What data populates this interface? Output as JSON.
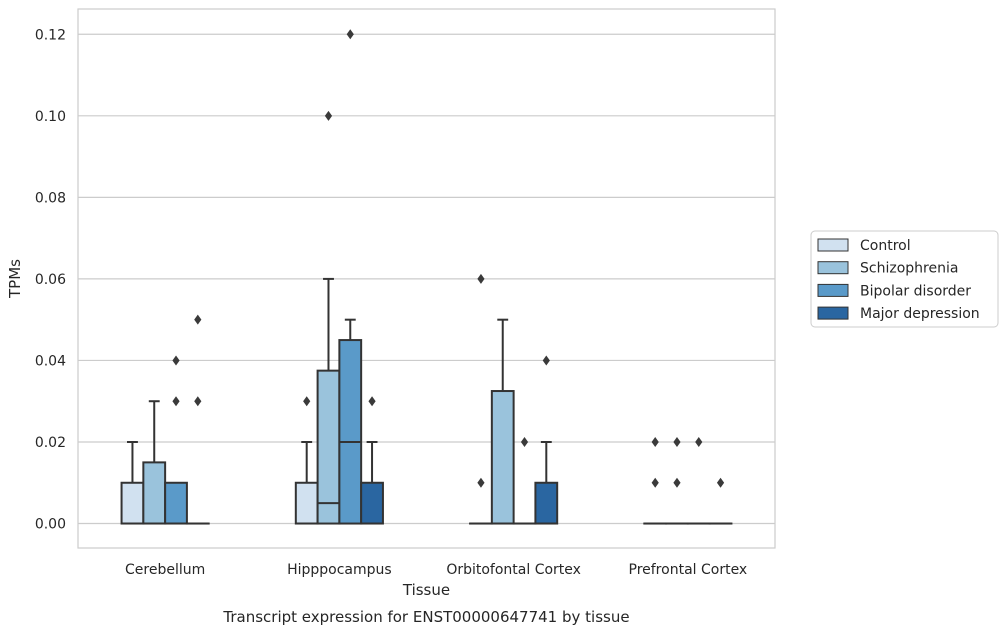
{
  "chart_data": {
    "type": "box",
    "title": "Transcript expression for ENST00000647741 by tissue",
    "xlabel": "Tissue",
    "ylabel": "TPMs",
    "ylim": [
      -0.006,
      0.1262
    ],
    "yticks": [
      "0.00",
      "0.02",
      "0.04",
      "0.06",
      "0.08",
      "0.10",
      "0.12"
    ],
    "ytick_values": [
      0,
      0.02,
      0.04,
      0.06,
      0.08,
      0.1,
      0.12
    ],
    "grid": true,
    "legend_position": "right",
    "categories": [
      "Cerebellum",
      "Hipppocampus",
      "Orbitofontal Cortex",
      "Prefrontal Cortex"
    ],
    "series": [
      {
        "name": "Control",
        "color": "#d1e1f0",
        "boxes": [
          {
            "q1": 0,
            "median": 0,
            "q3": 0.01,
            "whisker_low": 0,
            "whisker_high": 0.02,
            "outliers": []
          },
          {
            "q1": 0,
            "median": 0,
            "q3": 0.01,
            "whisker_low": 0,
            "whisker_high": 0.02,
            "outliers": [
              0.03
            ]
          },
          {
            "q1": 0,
            "median": 0,
            "q3": 0,
            "whisker_low": 0,
            "whisker_high": 0,
            "outliers": [
              0.01,
              0.06
            ]
          },
          {
            "q1": 0,
            "median": 0,
            "q3": 0,
            "whisker_low": 0,
            "whisker_high": 0,
            "outliers": [
              0.01,
              0.02
            ]
          }
        ]
      },
      {
        "name": "Schizophrenia",
        "color": "#9ac3dc",
        "boxes": [
          {
            "q1": 0,
            "median": 0,
            "q3": 0.015,
            "whisker_low": 0,
            "whisker_high": 0.03,
            "outliers": []
          },
          {
            "q1": 0,
            "median": 0.005,
            "q3": 0.0375,
            "whisker_low": 0,
            "whisker_high": 0.06,
            "outliers": [
              0.1
            ]
          },
          {
            "q1": 0,
            "median": 0,
            "q3": 0.0325,
            "whisker_low": 0,
            "whisker_high": 0.05,
            "outliers": []
          },
          {
            "q1": 0,
            "median": 0,
            "q3": 0,
            "whisker_low": 0,
            "whisker_high": 0,
            "outliers": [
              0.01,
              0.02
            ]
          }
        ]
      },
      {
        "name": "Bipolar disorder",
        "color": "#5a9ac9",
        "boxes": [
          {
            "q1": 0,
            "median": 0,
            "q3": 0.01,
            "whisker_low": 0,
            "whisker_high": 0.01,
            "outliers": [
              0.03,
              0.04
            ]
          },
          {
            "q1": 0,
            "median": 0.02,
            "q3": 0.045,
            "whisker_low": 0,
            "whisker_high": 0.05,
            "outliers": [
              0.12
            ]
          },
          {
            "q1": 0,
            "median": 0,
            "q3": 0,
            "whisker_low": 0,
            "whisker_high": 0,
            "outliers": [
              0.02
            ]
          },
          {
            "q1": 0,
            "median": 0,
            "q3": 0,
            "whisker_low": 0,
            "whisker_high": 0,
            "outliers": [
              0.02
            ]
          }
        ]
      },
      {
        "name": "Major depression",
        "color": "#2a66a1",
        "boxes": [
          {
            "q1": 0,
            "median": 0,
            "q3": 0,
            "whisker_low": 0,
            "whisker_high": 0,
            "outliers": [
              0.03,
              0.05
            ]
          },
          {
            "q1": 0,
            "median": 0,
            "q3": 0.01,
            "whisker_low": 0,
            "whisker_high": 0.02,
            "outliers": [
              0.03
            ]
          },
          {
            "q1": 0,
            "median": 0,
            "q3": 0.01,
            "whisker_low": 0,
            "whisker_high": 0.02,
            "outliers": [
              0.04
            ]
          },
          {
            "q1": 0,
            "median": 0,
            "q3": 0,
            "whisker_low": 0,
            "whisker_high": 0,
            "outliers": [
              0.01
            ]
          }
        ]
      }
    ]
  }
}
